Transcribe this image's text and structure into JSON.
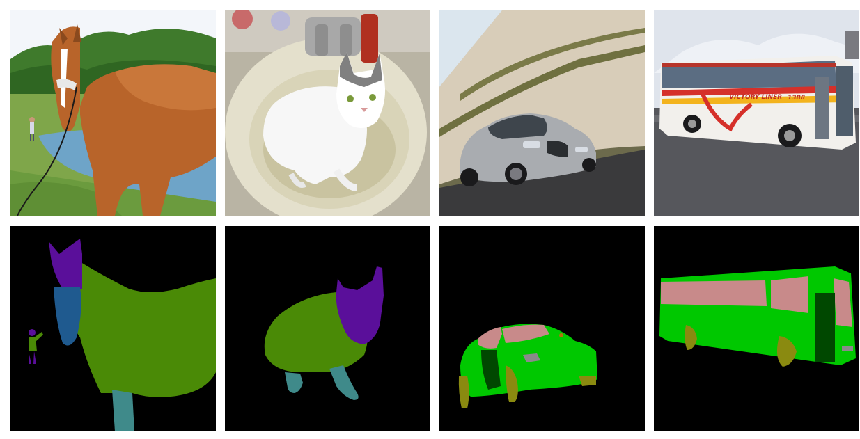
{
  "figure": {
    "photos": [
      {
        "subject": "horse",
        "icon": "horse-photo"
      },
      {
        "subject": "cat",
        "icon": "cat-photo"
      },
      {
        "subject": "car",
        "icon": "car-photo"
      },
      {
        "subject": "bus",
        "icon": "bus-photo"
      }
    ],
    "masks": [
      {
        "subject": "horse",
        "icon": "horse-segmentation-mask"
      },
      {
        "subject": "cat",
        "icon": "cat-segmentation-mask"
      },
      {
        "subject": "car",
        "icon": "car-segmentation-mask"
      },
      {
        "subject": "bus",
        "icon": "bus-segmentation-mask"
      }
    ],
    "bus_sign": {
      "name": "VICTORY LINER",
      "number": "1388"
    },
    "mask_colors": {
      "background": "#000000",
      "head": "#5a0f9a",
      "muzzle": "#1f5a8f",
      "body": "#4a8a06",
      "legs": "#3f8a8a",
      "window": "#c88a8a",
      "vehicle_body": "#00c800",
      "wheel": "#8a8a10",
      "door": "#004800",
      "light": "#8a8a8a"
    }
  }
}
